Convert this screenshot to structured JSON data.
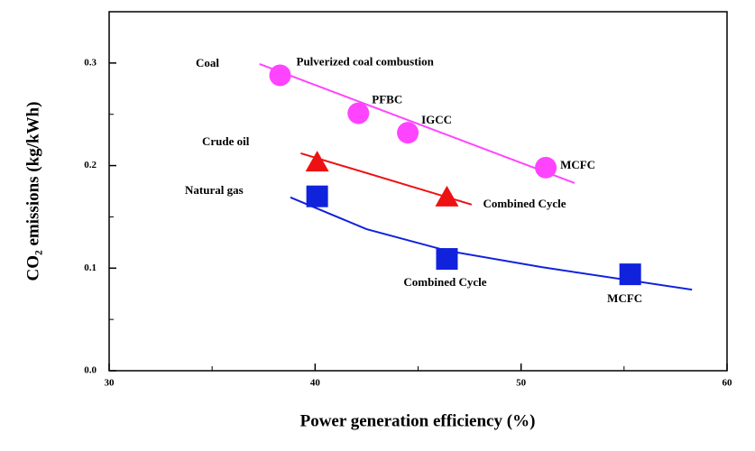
{
  "chart_data": {
    "type": "scatter",
    "x_label": "Power generation efficiency (%)",
    "y_label": "CO₂ emissions (kg/kWh)",
    "xlim": [
      30,
      60
    ],
    "xticks": [
      30,
      40,
      50,
      60
    ],
    "minor_xticks": [
      35,
      45,
      55
    ],
    "ylim": [
      0,
      0.35
    ],
    "yticks": [
      {
        "value": 0,
        "label": "0.0"
      },
      0.1,
      0.2,
      0.3
    ],
    "minor_yticks": [
      0.05,
      0.15,
      0.25
    ],
    "series": [
      {
        "name": "Coal",
        "color": "#ff44ff",
        "marker": "circle",
        "x": [
          38.3,
          42.1,
          44.5,
          51.2
        ],
        "values": [
          0.288,
          0.251,
          0.232,
          0.198
        ],
        "point_labels": [
          "Pulverized coal combustion",
          "PFBC",
          "IGCC",
          "MCFC"
        ],
        "fit": {
          "x": [
            37.3,
            52.6
          ],
          "values": [
            0.299,
            0.183
          ]
        }
      },
      {
        "name": "Crude oil",
        "color": "#ee1111",
        "marker": "triangle",
        "x": [
          40.1,
          46.4
        ],
        "values": [
          0.203,
          0.169
        ],
        "point_labels": [
          null,
          "Combined Cycle"
        ],
        "fit": {
          "x": [
            39.3,
            47.6
          ],
          "values": [
            0.212,
            0.162
          ]
        }
      },
      {
        "name": "Natural gas",
        "color": "#1122dd",
        "marker": "square",
        "x": [
          40.1,
          46.4,
          55.3
        ],
        "values": [
          0.17,
          0.109,
          0.094
        ],
        "point_labels": [
          null,
          "Combined Cycle",
          "MCFC"
        ],
        "fit": {
          "x": [
            38.8,
            42.5,
            46.4,
            51,
            58.3
          ],
          "values": [
            0.169,
            0.138,
            0.117,
            0.101,
            0.079
          ]
        }
      }
    ]
  }
}
